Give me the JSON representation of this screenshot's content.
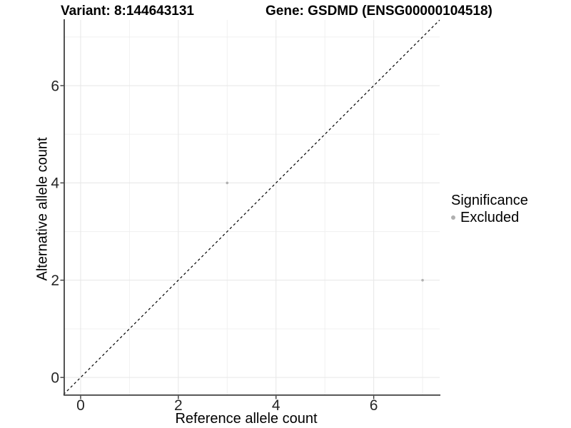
{
  "chart_data": {
    "type": "scatter",
    "title_left": "Variant: 8:144643131",
    "title_right": "Gene: GSDMD (ENSG00000104518)",
    "xlabel": "Reference allele count",
    "ylabel": "Alternative allele count",
    "xlim": [
      -0.35,
      7.35
    ],
    "ylim": [
      -0.35,
      7.35
    ],
    "x_ticks": [
      0,
      2,
      4,
      6
    ],
    "y_ticks": [
      0,
      2,
      4,
      6
    ],
    "x_minor_ticks": [
      1,
      3,
      5,
      7
    ],
    "y_minor_ticks": [
      1,
      3,
      5,
      7
    ],
    "grid": "major+minor",
    "legend": {
      "title": "Significance",
      "position": "right",
      "entries": [
        {
          "label": "Excluded",
          "color": "#b0b0b0"
        }
      ]
    },
    "series": [
      {
        "name": "Excluded",
        "color": "#b0b0b0",
        "points": [
          {
            "x": 3,
            "y": 4
          },
          {
            "x": 7,
            "y": 2
          }
        ]
      }
    ],
    "reference_line": {
      "type": "identity",
      "style": "dashed",
      "color": "#000000"
    }
  },
  "colors": {
    "background": "#ffffff",
    "grid_major": "#e8e8e8",
    "grid_minor": "#f0f0f0",
    "axis_line": "#404040",
    "tick_mark": "#3a3a3a",
    "tick_label": "#262626",
    "point": "#b0b0b0",
    "text": "#000000"
  }
}
